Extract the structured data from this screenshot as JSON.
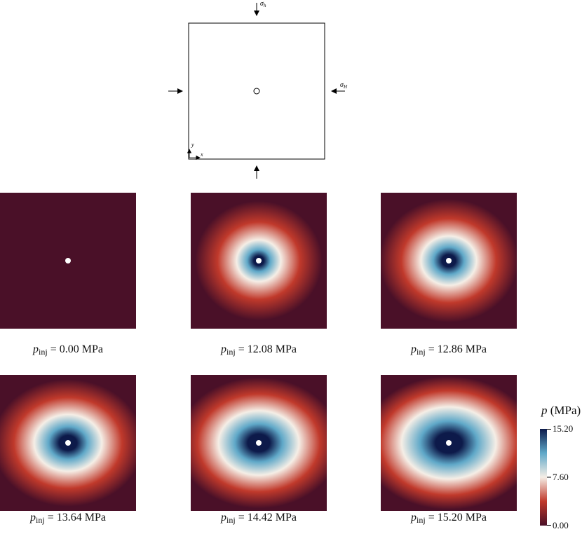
{
  "schematic": {
    "sigma_h_label": "σ",
    "sigma_h_sub": "h",
    "sigma_H_label": "σ",
    "sigma_H_sub": "H",
    "axis_y": "y",
    "axis_x": "x"
  },
  "panels": [
    {
      "symbol": "p",
      "subscript": "inj",
      "value_text": "= 0.00 MPa",
      "p_inj": 0.0
    },
    {
      "symbol": "p",
      "subscript": "inj",
      "value_text": "= 12.08 MPa",
      "p_inj": 12.08
    },
    {
      "symbol": "p",
      "subscript": "inj",
      "value_text": "= 12.86 MPa",
      "p_inj": 12.86
    },
    {
      "symbol": "p",
      "subscript": "inj",
      "value_text": "= 13.64 MPa",
      "p_inj": 13.64
    },
    {
      "symbol": "p",
      "subscript": "inj",
      "value_text": "= 14.42 MPa",
      "p_inj": 14.42
    },
    {
      "symbol": "p",
      "subscript": "inj",
      "value_text": "= 15.20 MPa",
      "p_inj": 15.2
    }
  ],
  "colorbar": {
    "symbol": "p",
    "unit": "(MPa)",
    "ticks": [
      "15.20",
      "7.60",
      "0.00"
    ],
    "max": 15.2,
    "min": 0.0,
    "colors": {
      "low": "#4a1028",
      "lowmid": "#c0392b",
      "mid": "#f5eee6",
      "highmid": "#5fa8c8",
      "high": "#0d1a4a"
    }
  }
}
